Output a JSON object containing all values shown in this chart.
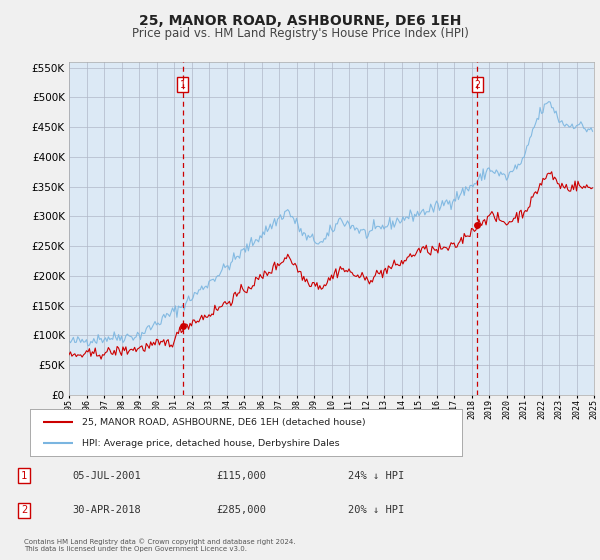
{
  "title": "25, MANOR ROAD, ASHBOURNE, DE6 1EH",
  "subtitle": "Price paid vs. HM Land Registry's House Price Index (HPI)",
  "legend_line1": "25, MANOR ROAD, ASHBOURNE, DE6 1EH (detached house)",
  "legend_line2": "HPI: Average price, detached house, Derbyshire Dales",
  "footnote": "Contains HM Land Registry data © Crown copyright and database right 2024.\nThis data is licensed under the Open Government Licence v3.0.",
  "transaction1_date": "05-JUL-2001",
  "transaction1_price": "£115,000",
  "transaction1_hpi": "24% ↓ HPI",
  "transaction2_date": "30-APR-2018",
  "transaction2_price": "£285,000",
  "transaction2_hpi": "20% ↓ HPI",
  "marker1_year": 2001.5,
  "marker1_value": 115000,
  "marker2_year": 2018.33,
  "marker2_value": 285000,
  "vline1_year": 2001.5,
  "vline2_year": 2018.33,
  "hpi_color": "#7ab5e0",
  "price_color": "#cc0000",
  "marker_color": "#cc0000",
  "vline_color": "#cc0000",
  "ylim": [
    0,
    560000
  ],
  "yticks": [
    0,
    50000,
    100000,
    150000,
    200000,
    250000,
    300000,
    350000,
    400000,
    450000,
    500000,
    550000
  ],
  "background_color": "#f0f0f0",
  "plot_background": "#dce9f5",
  "grid_color": "#b0b8c8",
  "title_fontsize": 10,
  "subtitle_fontsize": 8.5,
  "hpi_anchors_years": [
    1995.0,
    1997.0,
    1999.0,
    2001.5,
    2004.0,
    2007.5,
    2008.5,
    2009.5,
    2010.5,
    2012.0,
    2014.0,
    2016.0,
    2017.0,
    2018.33,
    2019.0,
    2020.0,
    2021.0,
    2021.5,
    2022.0,
    2022.5,
    2023.0,
    2023.5,
    2024.0,
    2024.5
  ],
  "hpi_anchors_values": [
    88000,
    95000,
    100000,
    150000,
    215000,
    310000,
    265000,
    255000,
    295000,
    270000,
    295000,
    315000,
    330000,
    358000,
    380000,
    365000,
    395000,
    445000,
    478000,
    492000,
    462000,
    452000,
    456000,
    447000
  ],
  "price_anchors_years": [
    1995.0,
    1997.0,
    1999.0,
    2001.0,
    2001.5,
    2003.0,
    2005.0,
    2007.0,
    2007.5,
    2008.5,
    2009.5,
    2010.5,
    2012.0,
    2013.0,
    2014.0,
    2015.0,
    2016.0,
    2017.0,
    2018.33,
    2019.0,
    2020.0,
    2021.0,
    2021.5,
    2022.0,
    2022.5,
    2023.0,
    2023.5,
    2024.0,
    2024.5
  ],
  "price_anchors_values": [
    65000,
    70000,
    78000,
    90000,
    115000,
    135000,
    175000,
    220000,
    235000,
    193000,
    182000,
    213000,
    193000,
    208000,
    222000,
    243000,
    243000,
    248000,
    285000,
    302000,
    288000,
    308000,
    328000,
    358000,
    373000,
    353000,
    348000,
    352000,
    348000
  ],
  "noise_seed": 42,
  "hpi_noise_std": 5000,
  "price_noise_std": 4500
}
